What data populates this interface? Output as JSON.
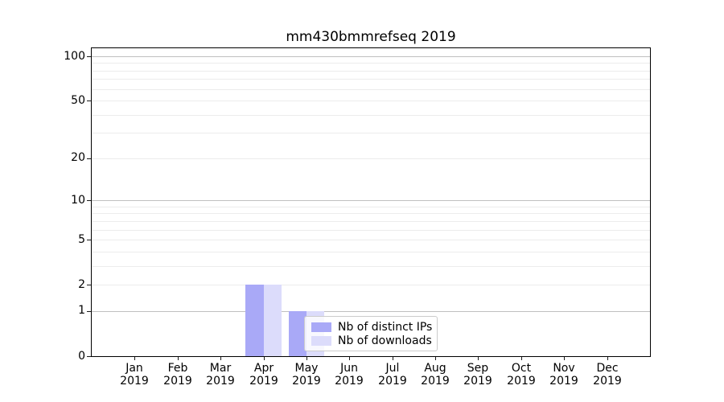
{
  "chart_data": {
    "type": "bar",
    "title": "mm430bmmrefseq 2019",
    "categories": [
      "Jan",
      "Feb",
      "Mar",
      "Apr",
      "May",
      "Jun",
      "Jul",
      "Aug",
      "Sep",
      "Oct",
      "Nov",
      "Dec"
    ],
    "x_year_label": "2019",
    "series": [
      {
        "name": "Nb of distinct IPs",
        "color": "#a9a9f7",
        "values": [
          0,
          0,
          0,
          2,
          1,
          0,
          0,
          0,
          0,
          0,
          0,
          0
        ]
      },
      {
        "name": "Nb of downloads",
        "color": "#dcdcfb",
        "values": [
          0,
          0,
          0,
          2,
          1,
          0,
          0,
          0,
          0,
          0,
          0,
          0
        ]
      }
    ],
    "y_scale": "log1p",
    "y_ticks": [
      0,
      1,
      2,
      5,
      10,
      20,
      50,
      100
    ],
    "ylim": [
      0,
      115
    ],
    "xlabel": "",
    "ylabel": "",
    "grid": {
      "on": true,
      "major_values": [
        1,
        10,
        100
      ],
      "minor_values": [
        2,
        3,
        4,
        5,
        6,
        7,
        8,
        9,
        20,
        30,
        40,
        50,
        60,
        70,
        80,
        90
      ],
      "major_color": "#c0c0c0",
      "minor_color": "#ececec"
    },
    "legend": {
      "location": "inside lower center-right"
    },
    "axis_color": "#000000",
    "text_color": "#000000",
    "background_color": "#ffffff"
  }
}
